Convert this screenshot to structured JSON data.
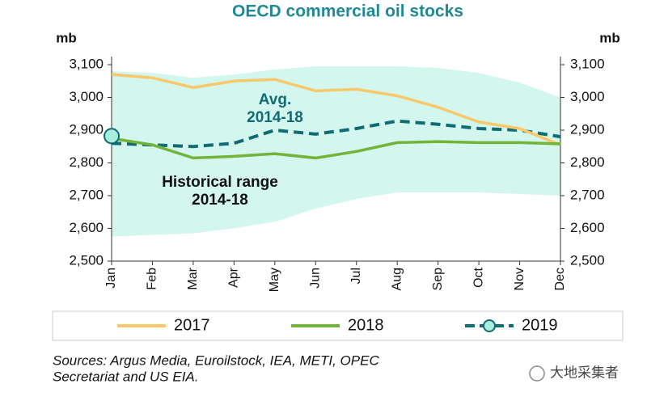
{
  "chart_data": {
    "type": "line",
    "title": "OECD commercial oil stocks",
    "y_label": "mb",
    "y2_label": "mb",
    "categories": [
      "Jan",
      "Feb",
      "Mar",
      "Apr",
      "May",
      "Jun",
      "Jul",
      "Aug",
      "Sep",
      "Oct",
      "Nov",
      "Dec"
    ],
    "ylim": [
      2500,
      3100
    ],
    "yticks": [
      {
        "value": 2500,
        "label": "2,500"
      },
      {
        "value": 2600,
        "label": "2,600"
      },
      {
        "value": 2700,
        "label": "2,700"
      },
      {
        "value": 2800,
        "label": "2,800"
      },
      {
        "value": 2900,
        "label": "2,900"
      },
      {
        "value": 3000,
        "label": "3,000"
      },
      {
        "value": 3100,
        "label": "3,100"
      }
    ],
    "series": [
      {
        "name": "2017",
        "color": "#f7c96a",
        "values": [
          3070,
          3060,
          3030,
          3050,
          3055,
          3020,
          3025,
          3005,
          2970,
          2925,
          2905,
          2855
        ]
      },
      {
        "name": "2018",
        "color": "#72b33a",
        "values": [
          2875,
          2855,
          2815,
          2820,
          2828,
          2815,
          2835,
          2862,
          2865,
          2862,
          2862,
          2858
        ]
      },
      {
        "name": "2019",
        "color": "#106b72",
        "marker": true,
        "values": [
          2882,
          null,
          null,
          null,
          null,
          null,
          null,
          null,
          null,
          null,
          null,
          null
        ]
      }
    ],
    "avg": {
      "color": "#106b72",
      "values": [
        2860,
        2855,
        2850,
        2860,
        2900,
        2888,
        2905,
        2928,
        2918,
        2905,
        2900,
        2880
      ]
    },
    "range": {
      "color": "#d3f6ee",
      "upper": [
        3080,
        3075,
        3060,
        3070,
        3085,
        3095,
        3095,
        3095,
        3090,
        3075,
        3045,
        3000
      ],
      "lower": [
        2575,
        2580,
        2585,
        2600,
        2620,
        2660,
        2690,
        2710,
        2710,
        2710,
        2705,
        2700
      ]
    },
    "annotations": [
      {
        "lines": [
          "Avg.",
          "2014-18"
        ]
      },
      {
        "lines": [
          "Historical range",
          "2014-18"
        ]
      }
    ],
    "source": [
      "Sources: Argus Media, Euroilstock, IEA, METI, OPEC",
      "Secretariat and US EIA."
    ],
    "watermark": "大地采集者"
  }
}
